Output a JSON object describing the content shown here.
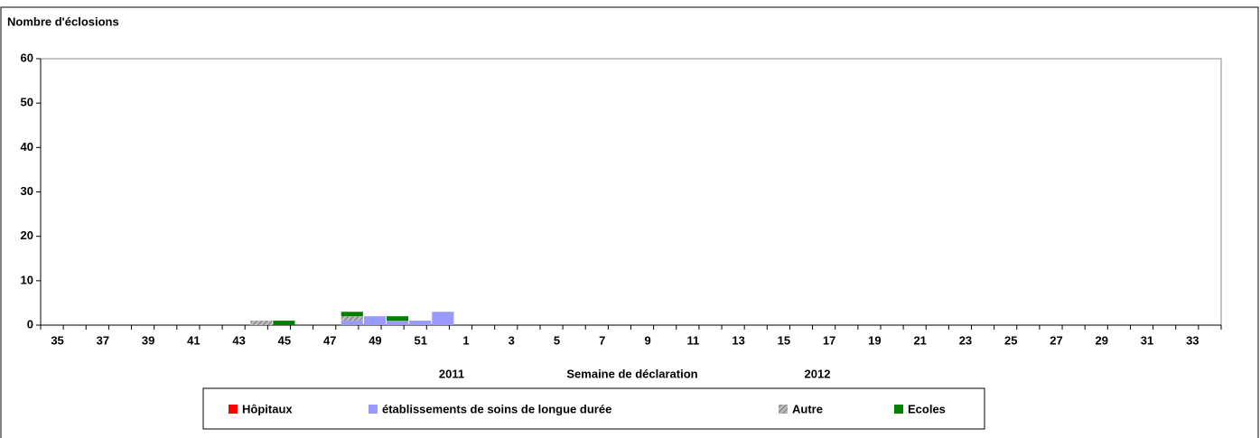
{
  "chart_data": {
    "type": "bar",
    "stacked": true,
    "ylabel": "Nombre d'éclosions",
    "xlabel": "Semaine de déclaration",
    "year_labels": [
      "2011",
      "2012"
    ],
    "categories": [
      "35",
      null,
      "37",
      null,
      "39",
      null,
      "41",
      null,
      "43",
      null,
      "45",
      null,
      "47",
      null,
      "49",
      null,
      "51",
      null,
      "1",
      null,
      "3",
      null,
      "5",
      null,
      "7",
      null,
      "9",
      null,
      "11",
      null,
      "13",
      null,
      "15",
      null,
      "17",
      null,
      "19",
      null,
      "21",
      null,
      "23",
      null,
      "25",
      null,
      "27",
      null,
      "29",
      null,
      "31",
      null,
      "33",
      null
    ],
    "series": [
      {
        "name": "Hôpitaux",
        "color": "#ff0000",
        "values": [
          0,
          0,
          0,
          0,
          0,
          0,
          0,
          0,
          0,
          0,
          0,
          0,
          0,
          0,
          0,
          0,
          0,
          0,
          0,
          0,
          0,
          0,
          0,
          0,
          0,
          0,
          0,
          0,
          0,
          0,
          0,
          0,
          0,
          0,
          0,
          0,
          0,
          0,
          0,
          0,
          0,
          0,
          0,
          0,
          0,
          0,
          0,
          0,
          0,
          0,
          0,
          0
        ]
      },
      {
        "name": "établissements de soins de longue durée",
        "color": "#9999ff",
        "values": [
          0,
          0,
          0,
          0,
          0,
          0,
          0,
          0,
          0,
          0,
          0,
          0,
          0,
          1,
          2,
          1,
          1,
          3,
          0,
          0,
          0,
          0,
          0,
          0,
          0,
          0,
          0,
          0,
          0,
          0,
          0,
          0,
          0,
          0,
          0,
          0,
          0,
          0,
          0,
          0,
          0,
          0,
          0,
          0,
          0,
          0,
          0,
          0,
          0,
          0,
          0,
          0
        ]
      },
      {
        "name": "Autre",
        "color": "#999999",
        "pattern": "hatch",
        "values": [
          0,
          0,
          0,
          0,
          0,
          0,
          0,
          0,
          0,
          1,
          0,
          0,
          0,
          1,
          0,
          0,
          0,
          0,
          0,
          0,
          0,
          0,
          0,
          0,
          0,
          0,
          0,
          0,
          0,
          0,
          0,
          0,
          0,
          0,
          0,
          0,
          0,
          0,
          0,
          0,
          0,
          0,
          0,
          0,
          0,
          0,
          0,
          0,
          0,
          0,
          0,
          0
        ]
      },
      {
        "name": "Ecoles",
        "color": "#008000",
        "values": [
          0,
          0,
          0,
          0,
          0,
          0,
          0,
          0,
          0,
          0,
          1,
          0,
          0,
          1,
          0,
          1,
          0,
          0,
          0,
          0,
          0,
          0,
          0,
          0,
          0,
          0,
          0,
          0,
          0,
          0,
          0,
          0,
          0,
          0,
          0,
          0,
          0,
          0,
          0,
          0,
          0,
          0,
          0,
          0,
          0,
          0,
          0,
          0,
          0,
          0,
          0,
          0
        ]
      }
    ],
    "ylim": [
      0,
      60
    ],
    "yticks": [
      0,
      10,
      20,
      30,
      40,
      50,
      60
    ]
  }
}
